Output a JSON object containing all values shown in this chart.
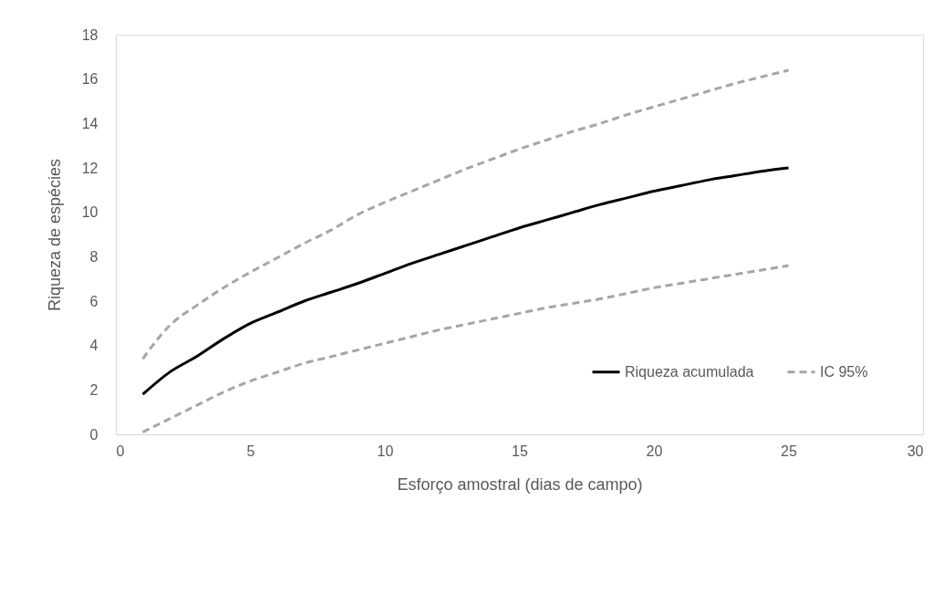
{
  "chart_data": {
    "type": "line",
    "xlabel": "Esforço amostral (dias de campo)",
    "ylabel": "Riqueza de espécies",
    "x": [
      1,
      2,
      3,
      4,
      5,
      6,
      7,
      8,
      9,
      10,
      11,
      12,
      13,
      14,
      15,
      16,
      17,
      18,
      19,
      20,
      21,
      22,
      23,
      24,
      25
    ],
    "series": [
      {
        "name": "Riqueza acumulada",
        "color": "#000000",
        "line_style": "solid",
        "values": [
          1.8,
          2.8,
          3.5,
          4.3,
          5.0,
          5.5,
          6.0,
          6.4,
          6.8,
          7.25,
          7.7,
          8.1,
          8.5,
          8.9,
          9.3,
          9.65,
          10.0,
          10.35,
          10.65,
          10.95,
          11.2,
          11.45,
          11.65,
          11.85,
          12.0
        ]
      },
      {
        "name": "IC 95%",
        "color": "#a6a6a6",
        "line_style": "dashed",
        "values": [
          3.4,
          4.9,
          5.8,
          6.6,
          7.3,
          7.95,
          8.6,
          9.2,
          9.9,
          10.45,
          10.95,
          11.45,
          11.95,
          12.4,
          12.85,
          13.25,
          13.65,
          14.0,
          14.4,
          14.75,
          15.1,
          15.45,
          15.8,
          16.1,
          16.4
        ]
      },
      {
        "color": "#a6a6a6",
        "line_style": "dashed",
        "values": [
          0.1,
          0.7,
          1.3,
          1.9,
          2.4,
          2.8,
          3.2,
          3.5,
          3.8,
          4.1,
          4.4,
          4.7,
          4.95,
          5.2,
          5.45,
          5.7,
          5.9,
          6.1,
          6.35,
          6.6,
          6.8,
          7.0,
          7.2,
          7.4,
          7.6
        ]
      }
    ],
    "xlim": [
      0,
      30
    ],
    "xticks": [
      0,
      5,
      10,
      15,
      20,
      25,
      30
    ],
    "ylim": [
      0,
      18
    ],
    "yticks": [
      0,
      2,
      4,
      6,
      8,
      10,
      12,
      14,
      16,
      18
    ],
    "grid": false,
    "legend": "bottom right"
  }
}
